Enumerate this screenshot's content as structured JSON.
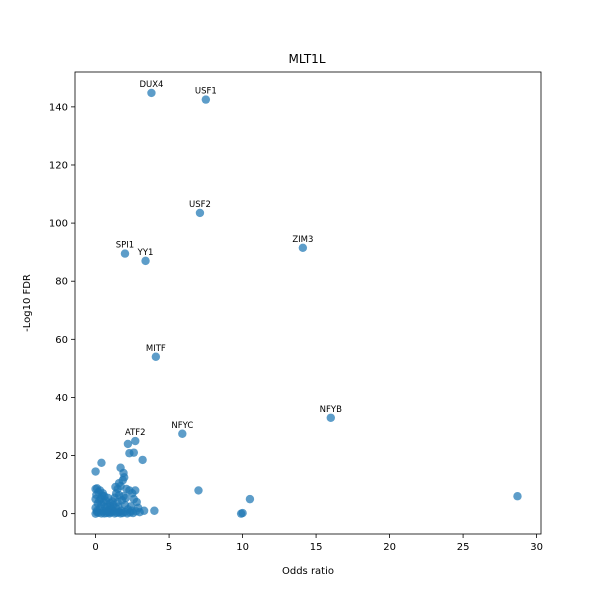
{
  "chart_data": {
    "type": "scatter",
    "title": "MLT1L",
    "xlabel": "Odds ratio",
    "ylabel": "-Log10 FDR",
    "xlim": [
      -1.4,
      30.3
    ],
    "ylim": [
      -7,
      152
    ],
    "xticks": [
      0,
      5,
      10,
      15,
      20,
      25,
      30
    ],
    "yticks": [
      0,
      20,
      40,
      60,
      80,
      100,
      120,
      140
    ],
    "grid": false,
    "point_color": "#1f77b4",
    "labeled_points": [
      {
        "label": "DUX4",
        "x": 3.8,
        "y": 144.8
      },
      {
        "label": "USF1",
        "x": 7.5,
        "y": 142.5
      },
      {
        "label": "USF2",
        "x": 7.1,
        "y": 103.5
      },
      {
        "label": "ZIM3",
        "x": 14.1,
        "y": 91.5
      },
      {
        "label": "SPI1",
        "x": 2.0,
        "y": 89.5
      },
      {
        "label": "YY1",
        "x": 3.4,
        "y": 87.0
      },
      {
        "label": "MITF",
        "x": 4.1,
        "y": 54.0
      },
      {
        "label": "NFYB",
        "x": 16.0,
        "y": 33.0
      },
      {
        "label": "NFYC",
        "x": 5.9,
        "y": 27.5
      },
      {
        "label": "ATF2",
        "x": 2.7,
        "y": 25.0
      }
    ],
    "points": [
      {
        "x": 28.7,
        "y": 6.0
      },
      {
        "x": 10.5,
        "y": 5.0
      },
      {
        "x": 10.0,
        "y": 0.2
      },
      {
        "x": 9.9,
        "y": 0.0
      },
      {
        "x": 7.0,
        "y": 8.0
      },
      {
        "x": 4.0,
        "y": 1.0
      },
      {
        "x": 3.2,
        "y": 18.5
      },
      {
        "x": 3.3,
        "y": 1.0
      },
      {
        "x": 3.0,
        "y": 0.5
      },
      {
        "x": 2.6,
        "y": 21.0
      },
      {
        "x": 2.3,
        "y": 20.8
      },
      {
        "x": 2.2,
        "y": 24.0
      },
      {
        "x": 0.4,
        "y": 17.5
      },
      {
        "x": 0.0,
        "y": 14.5
      },
      {
        "x": 1.7,
        "y": 15.8
      },
      {
        "x": 1.9,
        "y": 14.0
      },
      {
        "x": 1.95,
        "y": 12.5
      },
      {
        "x": 1.85,
        "y": 11.5
      },
      {
        "x": 1.6,
        "y": 10.5
      },
      {
        "x": 1.7,
        "y": 9.5
      },
      {
        "x": 2.1,
        "y": 8.5
      },
      {
        "x": 2.3,
        "y": 8.0
      },
      {
        "x": 2.7,
        "y": 8.0
      },
      {
        "x": 2.5,
        "y": 7.0
      },
      {
        "x": 2.6,
        "y": 5.0
      },
      {
        "x": 2.8,
        "y": 4.0
      },
      {
        "x": 2.4,
        "y": 2.5
      },
      {
        "x": 2.2,
        "y": 1.5
      },
      {
        "x": 2.0,
        "y": 3.0
      },
      {
        "x": 1.9,
        "y": 6.0
      },
      {
        "x": 1.5,
        "y": 8.5
      },
      {
        "x": 1.4,
        "y": 7.0
      },
      {
        "x": 1.3,
        "y": 5.5
      },
      {
        "x": 1.5,
        "y": 4.0
      },
      {
        "x": 1.2,
        "y": 3.0
      },
      {
        "x": 1.1,
        "y": 1.5
      },
      {
        "x": 0.9,
        "y": 0.5
      },
      {
        "x": 0.8,
        "y": 2.5
      },
      {
        "x": 0.7,
        "y": 4.5
      },
      {
        "x": 0.6,
        "y": 6.0
      },
      {
        "x": 0.5,
        "y": 7.0
      },
      {
        "x": 0.3,
        "y": 8.0
      },
      {
        "x": 0.1,
        "y": 8.7
      },
      {
        "x": 0.0,
        "y": 8.5
      },
      {
        "x": 0.05,
        "y": 6.5
      },
      {
        "x": 0.0,
        "y": 5.0
      },
      {
        "x": 0.15,
        "y": 3.5
      },
      {
        "x": 0.0,
        "y": 2.0
      },
      {
        "x": 0.1,
        "y": 1.0
      },
      {
        "x": 0.0,
        "y": 0.0
      },
      {
        "x": 0.2,
        "y": 0.3
      },
      {
        "x": 0.3,
        "y": 1.8
      },
      {
        "x": 0.4,
        "y": 3.2
      },
      {
        "x": 0.35,
        "y": 5.2
      },
      {
        "x": 0.55,
        "y": 4.0
      },
      {
        "x": 0.65,
        "y": 2.2
      },
      {
        "x": 0.5,
        "y": 0.8
      },
      {
        "x": 0.75,
        "y": 0.2
      },
      {
        "x": 0.9,
        "y": 1.2
      },
      {
        "x": 1.0,
        "y": 2.6
      },
      {
        "x": 1.05,
        "y": 0.4
      },
      {
        "x": 1.25,
        "y": 0.8
      },
      {
        "x": 1.4,
        "y": 1.8
      },
      {
        "x": 1.55,
        "y": 2.4
      },
      {
        "x": 1.6,
        "y": 0.5
      },
      {
        "x": 1.75,
        "y": 1.0
      },
      {
        "x": 1.85,
        "y": 0.2
      },
      {
        "x": 2.0,
        "y": 0.6
      },
      {
        "x": 2.15,
        "y": 0.1
      },
      {
        "x": 2.35,
        "y": 0.4
      },
      {
        "x": 2.55,
        "y": 0.2
      },
      {
        "x": 2.75,
        "y": 0.8
      },
      {
        "x": 2.9,
        "y": 2.0
      },
      {
        "x": 0.25,
        "y": 4.5
      },
      {
        "x": 0.45,
        "y": 6.2
      },
      {
        "x": 0.2,
        "y": 7.4
      },
      {
        "x": 0.85,
        "y": 5.4
      },
      {
        "x": 1.15,
        "y": 4.2
      },
      {
        "x": 1.35,
        "y": 9.2
      },
      {
        "x": 1.6,
        "y": 6.4
      },
      {
        "x": 1.8,
        "y": 4.6
      },
      {
        "x": 2.05,
        "y": 5.4
      },
      {
        "x": 0.6,
        "y": 0.1
      },
      {
        "x": 0.95,
        "y": 0.1
      },
      {
        "x": 1.3,
        "y": 0.1
      },
      {
        "x": 1.7,
        "y": 0.1
      },
      {
        "x": 0.1,
        "y": 0.5
      },
      {
        "x": 0.4,
        "y": 0.1
      },
      {
        "x": 1.45,
        "y": 0.3
      },
      {
        "x": 2.45,
        "y": 1.0
      },
      {
        "x": 0.7,
        "y": 1.0
      },
      {
        "x": 1.0,
        "y": 3.6
      }
    ]
  }
}
